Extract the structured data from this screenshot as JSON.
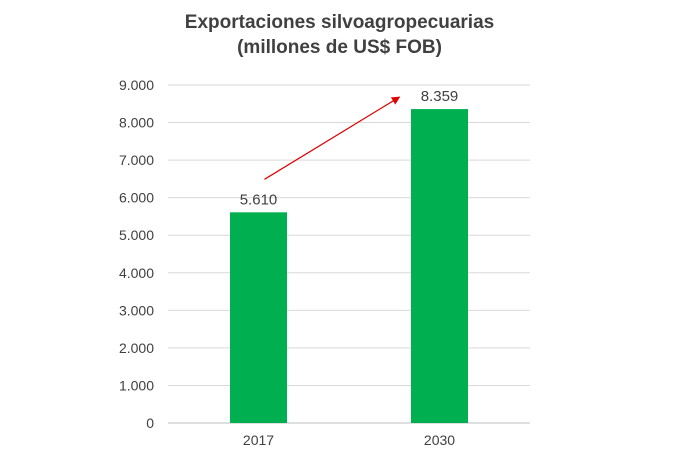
{
  "chart_data": {
    "type": "bar",
    "title": "Exportaciones silvoagropecuarias",
    "subtitle": "(millones de US$ FOB)",
    "xlabel": "",
    "ylabel": "",
    "categories": [
      "2017",
      "2030"
    ],
    "values": [
      5610,
      8359
    ],
    "value_labels": [
      "5.610",
      "8.359"
    ],
    "ylim": [
      0,
      9000
    ],
    "y_ticks": [
      0,
      1000,
      2000,
      3000,
      4000,
      5000,
      6000,
      7000,
      8000,
      9000
    ],
    "y_tick_labels": [
      "0",
      "1.000",
      "2.000",
      "3.000",
      "4.000",
      "5.000",
      "6.000",
      "7.000",
      "8.000",
      "9.000"
    ],
    "grid": true,
    "legend": "none",
    "bar_color": "#00B050",
    "arrow_color": "#E00000",
    "annotations": [
      {
        "type": "arrow",
        "from_category": "2017",
        "to_category": "2030"
      }
    ]
  }
}
